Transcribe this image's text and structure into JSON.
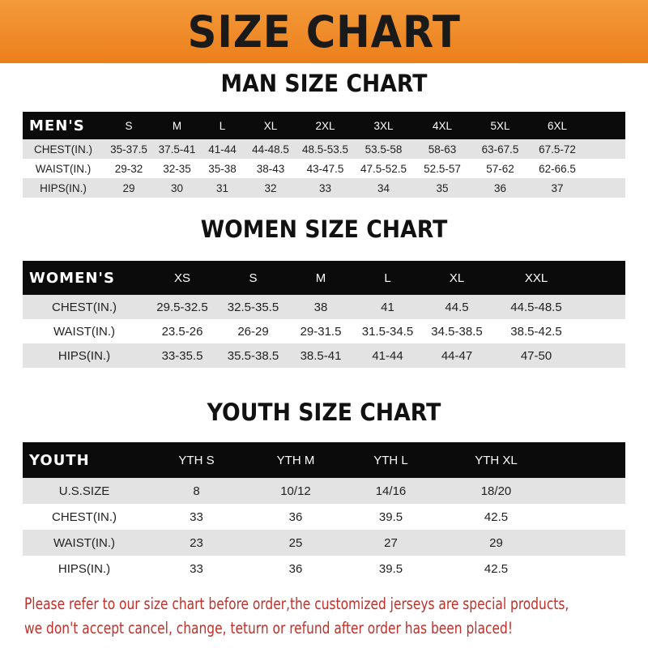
{
  "banner": "SIZE CHART",
  "men": {
    "title": "MAN SIZE CHART",
    "header": "MEN'S",
    "sizes": [
      "S",
      "M",
      "L",
      "XL",
      "2XL",
      "3XL",
      "4XL",
      "5XL",
      "6XL"
    ],
    "rows": [
      {
        "label": "CHEST(IN.)",
        "values": [
          "35-37.5",
          "37.5-41",
          "41-44",
          "44-48.5",
          "48.5-53.5",
          "53.5-58",
          "58-63",
          "63-67.5",
          "67.5-72"
        ]
      },
      {
        "label": "WAIST(IN.)",
        "values": [
          "29-32",
          "32-35",
          "35-38",
          "38-43",
          "43-47.5",
          "47.5-52.5",
          "52.5-57",
          "57-62",
          "62-66.5"
        ]
      },
      {
        "label": "HIPS(IN.)",
        "values": [
          "29",
          "30",
          "31",
          "32",
          "33",
          "34",
          "35",
          "36",
          "37"
        ]
      }
    ]
  },
  "women": {
    "title": "WOMEN SIZE CHART",
    "header": "WOMEN'S",
    "sizes": [
      "XS",
      "S",
      "M",
      "L",
      "XL",
      "XXL"
    ],
    "rows": [
      {
        "label": "CHEST(IN.)",
        "values": [
          "29.5-32.5",
          "32.5-35.5",
          "38",
          "41",
          "44.5",
          "44.5-48.5"
        ]
      },
      {
        "label": "WAIST(IN.)",
        "values": [
          "23.5-26",
          "26-29",
          "29-31.5",
          "31.5-34.5",
          "34.5-38.5",
          "38.5-42.5"
        ]
      },
      {
        "label": "HIPS(IN.)",
        "values": [
          "33-35.5",
          "35.5-38.5",
          "38.5-41",
          "41-44",
          "44-47",
          "47-50"
        ]
      }
    ]
  },
  "youth": {
    "title": "YOUTH SIZE CHART",
    "header": "YOUTH",
    "sizes": [
      "YTH S",
      "YTH M",
      "YTH L",
      "YTH XL"
    ],
    "rows": [
      {
        "label": "U.S.SIZE",
        "values": [
          "8",
          "10/12",
          "14/16",
          "18/20"
        ]
      },
      {
        "label": "CHEST(IN.)",
        "values": [
          "33",
          "36",
          "39.5",
          "42.5"
        ]
      },
      {
        "label": "WAIST(IN.)",
        "values": [
          "23",
          "25",
          "27",
          "29"
        ]
      },
      {
        "label": "HIPS(IN.)",
        "values": [
          "33",
          "36",
          "39.5",
          "42.5"
        ]
      }
    ]
  },
  "note": {
    "line1": "Please refer to our size chart before order,the customized jerseys are special products,",
    "line2": "we don't accept cancel, change, teturn or refund after order has been placed!"
  }
}
